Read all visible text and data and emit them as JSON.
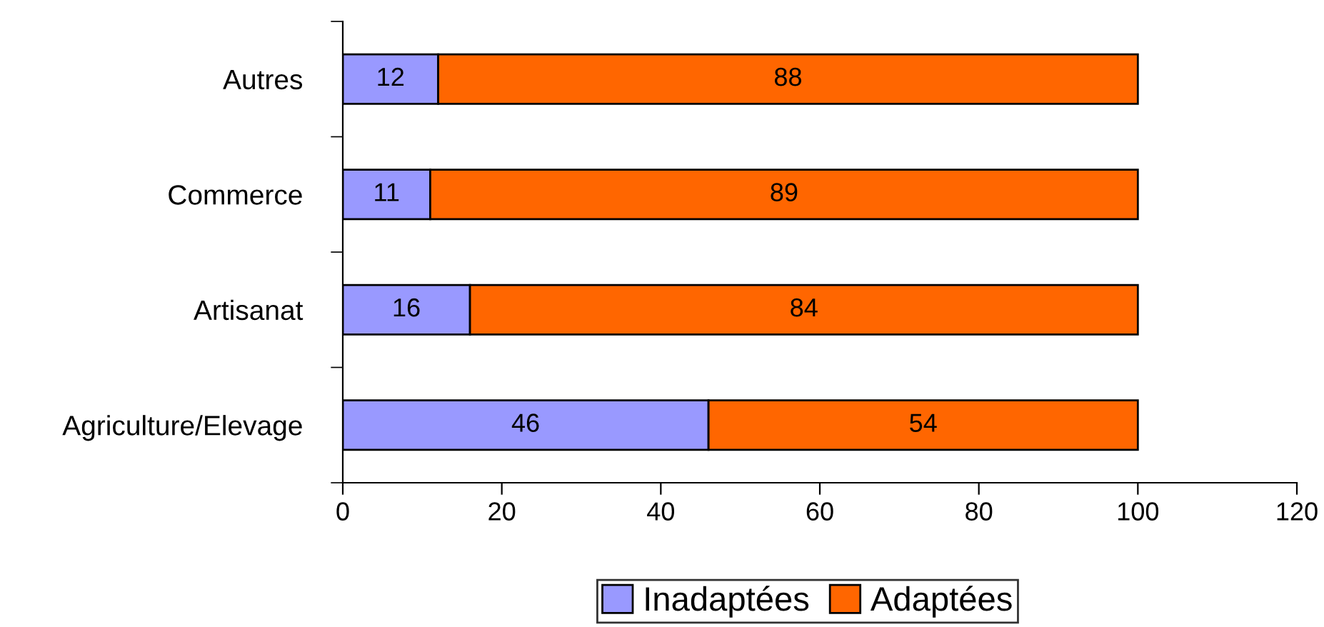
{
  "chart_data": {
    "type": "bar",
    "orientation": "horizontal",
    "stacked": true,
    "categories": [
      "Autres",
      "Commerce",
      "Artisanat",
      "Agriculture/Elevage"
    ],
    "series": [
      {
        "name": "Inadaptées",
        "color": "#9999ff",
        "values": [
          12,
          11,
          16,
          46
        ]
      },
      {
        "name": "Adaptées",
        "color": "#ff6600",
        "values": [
          88,
          89,
          84,
          54
        ]
      }
    ],
    "xlim": [
      0,
      120
    ],
    "xticks": [
      0,
      20,
      40,
      60,
      80,
      100,
      120
    ],
    "data_labels": true,
    "legend": "bottom",
    "grid": false
  }
}
